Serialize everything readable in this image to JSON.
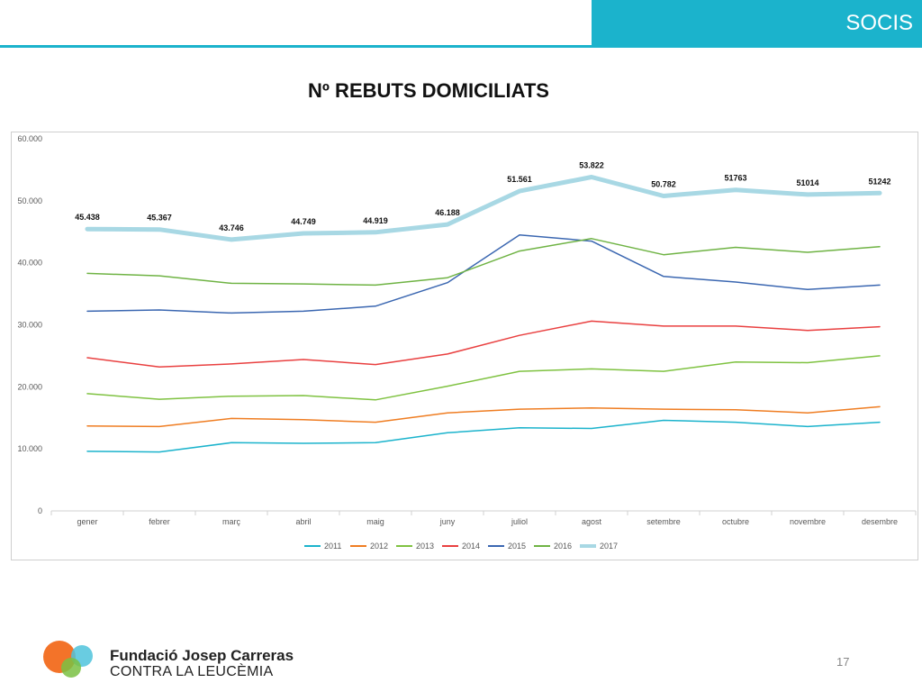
{
  "header": {
    "title": "SOCIS",
    "accent": "#1bb3cc"
  },
  "slide": {
    "title": "Nº REBUTS DOMICILIATS",
    "page_number": "17"
  },
  "footer": {
    "org_line1": "Fundació Josep Carreras",
    "org_line2": "CONTRA LA LEUCÈMIA"
  },
  "chart_data": {
    "type": "line",
    "categories": [
      "gener",
      "febrer",
      "març",
      "abril",
      "maig",
      "juny",
      "juliol",
      "agost",
      "setembre",
      "octubre",
      "novembre",
      "desembre"
    ],
    "ylim": [
      0,
      60000
    ],
    "yticks": [
      0,
      10000,
      20000,
      30000,
      40000,
      50000,
      60000
    ],
    "ytick_labels": [
      "0",
      "10.000",
      "20.000",
      "30.000",
      "40.000",
      "50.000",
      "60.000"
    ],
    "legend_position": "bottom",
    "grid": false,
    "series": [
      {
        "name": "2011",
        "color": "#1bb3cc",
        "width": 1.5,
        "values": [
          9600,
          9500,
          11000,
          10900,
          11000,
          12600,
          13400,
          13300,
          14600,
          14300,
          13600,
          14300
        ]
      },
      {
        "name": "2012",
        "color": "#ef7d22",
        "width": 1.5,
        "values": [
          13700,
          13600,
          14900,
          14700,
          14300,
          15800,
          16400,
          16600,
          16400,
          16300,
          15800,
          16800
        ]
      },
      {
        "name": "2013",
        "color": "#7fc241",
        "width": 1.5,
        "values": [
          18900,
          18000,
          18500,
          18600,
          17900,
          20100,
          22500,
          22900,
          22500,
          24000,
          23900,
          25000
        ]
      },
      {
        "name": "2014",
        "color": "#e94040",
        "width": 1.5,
        "values": [
          24700,
          23200,
          23700,
          24400,
          23600,
          25300,
          28300,
          30600,
          29800,
          29800,
          29100,
          29700
        ]
      },
      {
        "name": "2015",
        "color": "#3b67b1",
        "width": 1.5,
        "values": [
          32200,
          32400,
          31900,
          32200,
          33000,
          36800,
          44500,
          43500,
          37800,
          36900,
          35700,
          36400
        ]
      },
      {
        "name": "2016",
        "color": "#6fb344",
        "width": 1.5,
        "values": [
          38300,
          37900,
          36700,
          36600,
          36400,
          37600,
          41900,
          43900,
          41300,
          42500,
          41700,
          42600
        ]
      },
      {
        "name": "2017",
        "color": "#a8d8e4",
        "width": 5,
        "values": [
          45438,
          45367,
          43746,
          44749,
          44919,
          46188,
          51561,
          53822,
          50782,
          51763,
          51014,
          51242
        ],
        "data_labels": [
          "45.438",
          "45.367",
          "43.746",
          "44.749",
          "44.919",
          "46.188",
          "51.561",
          "53.822",
          "50.782",
          "51763",
          "51014",
          "51242"
        ]
      }
    ]
  }
}
